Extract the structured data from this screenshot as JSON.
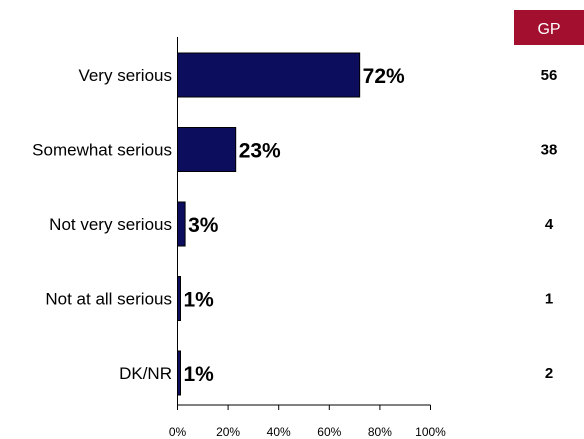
{
  "chart_data": {
    "type": "bar",
    "orientation": "horizontal",
    "categories": [
      "Very serious",
      "Somewhat serious",
      "Not very serious",
      "Not at all serious",
      "DK/NR"
    ],
    "values": [
      72,
      23,
      3,
      1,
      1
    ],
    "value_labels": [
      "72%",
      "23%",
      "3%",
      "1%",
      "1%"
    ],
    "xlim": [
      0,
      100
    ],
    "x_ticks": [
      "0%",
      "20%",
      "40%",
      "60%",
      "80%",
      "100%"
    ],
    "grid": false,
    "bar_color": "#0d0d5e"
  },
  "gp_column": {
    "header": "GP",
    "header_color": "#a3102f",
    "values": [
      "56",
      "38",
      "4",
      "1",
      "2"
    ]
  }
}
